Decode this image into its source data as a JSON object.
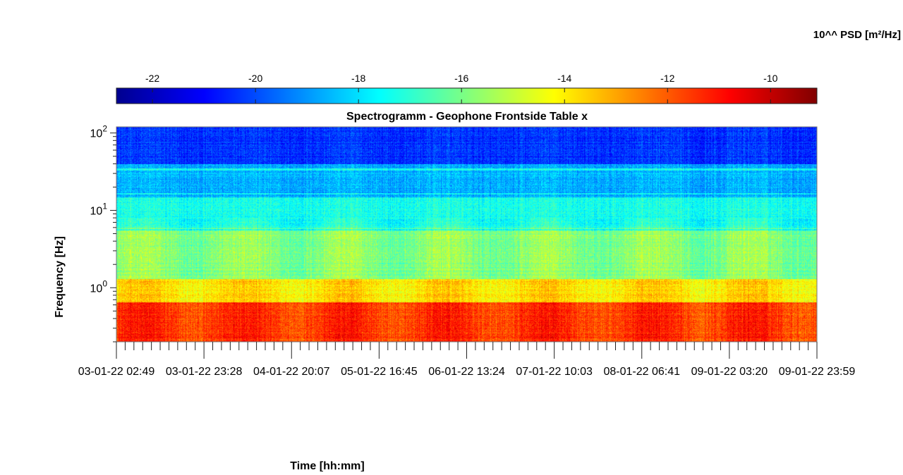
{
  "chart_data": {
    "type": "heatmap",
    "title": "Spectrogramm - Geophone Frontside Table x",
    "xlabel": "Time [hh:mm]",
    "ylabel": "Frequency [Hz]",
    "y_scale": "log",
    "ylim": [
      0.2,
      120
    ],
    "y_ticks": [
      {
        "value": 1,
        "base": "10",
        "exp": "0"
      },
      {
        "value": 10,
        "base": "10",
        "exp": "1"
      },
      {
        "value": 100,
        "base": "10",
        "exp": "2"
      }
    ],
    "x_ticks": [
      "03-01-22 02:49",
      "03-01-22 23:28",
      "04-01-22 20:07",
      "05-01-22 16:45",
      "06-01-22 13:24",
      "07-01-22 10:03",
      "08-01-22 06:41",
      "09-01-22 03:20",
      "09-01-22 23:59"
    ],
    "colorbar": {
      "label": "10^^ PSD [m²/Hz]",
      "range": [
        -22.7,
        -9.1
      ],
      "ticks": [
        -22,
        -20,
        -18,
        -16,
        -14,
        -12,
        -10
      ],
      "colormap": "jet"
    },
    "bands": [
      {
        "freq_range": [
          0.2,
          0.65
        ],
        "level": -11.5
      },
      {
        "freq_range": [
          0.65,
          1.3
        ],
        "level": -13.8
      },
      {
        "freq_range": [
          1.3,
          5.5
        ],
        "level": -15.8
      },
      {
        "freq_range": [
          5.5,
          15
        ],
        "level": -17.3
      },
      {
        "freq_range": [
          15,
          40
        ],
        "level": -18.6
      },
      {
        "freq_range": [
          40,
          120
        ],
        "level": -20.3
      }
    ],
    "narrowband_lines_hz": [
      5.9,
      16.5,
      34
    ]
  }
}
